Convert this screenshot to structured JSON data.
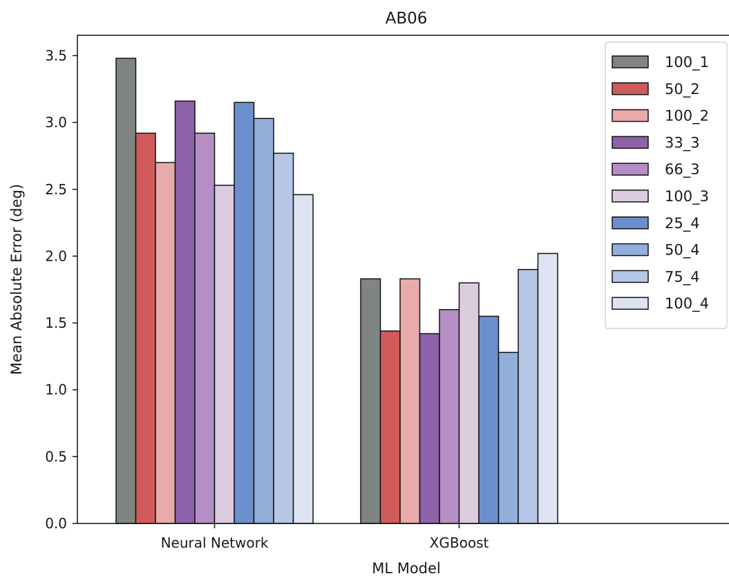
{
  "chart_data": {
    "type": "bar",
    "title": "AB06",
    "xlabel": "ML Model",
    "ylabel": "Mean Absolute Error (deg)",
    "categories": [
      "Neural Network",
      "XGBoost"
    ],
    "ylim": [
      0,
      3.65
    ],
    "yticks": [
      "0.0",
      "0.5",
      "1.0",
      "1.5",
      "2.0",
      "2.5",
      "3.0",
      "3.5"
    ],
    "legend_position": "top-right",
    "grid": false,
    "series": [
      {
        "name": "100_1",
        "color": "#7f8582",
        "values": [
          3.48,
          1.83
        ]
      },
      {
        "name": "50_2",
        "color": "#d15b5b",
        "values": [
          2.92,
          1.44
        ]
      },
      {
        "name": "100_2",
        "color": "#e8aaaa",
        "values": [
          2.7,
          1.83
        ]
      },
      {
        "name": "33_3",
        "color": "#8e62a8",
        "values": [
          3.16,
          1.42
        ]
      },
      {
        "name": "66_3",
        "color": "#b48ec4",
        "values": [
          2.92,
          1.6
        ]
      },
      {
        "name": "100_3",
        "color": "#dccce0",
        "values": [
          2.53,
          1.8
        ]
      },
      {
        "name": "25_4",
        "color": "#6a8fcc",
        "values": [
          3.15,
          1.55
        ]
      },
      {
        "name": "50_4",
        "color": "#92aedb",
        "values": [
          3.03,
          1.28
        ]
      },
      {
        "name": "75_4",
        "color": "#b6c6e6",
        "values": [
          2.77,
          1.9
        ]
      },
      {
        "name": "100_4",
        "color": "#dde3f1",
        "values": [
          2.46,
          2.02
        ]
      }
    ]
  }
}
